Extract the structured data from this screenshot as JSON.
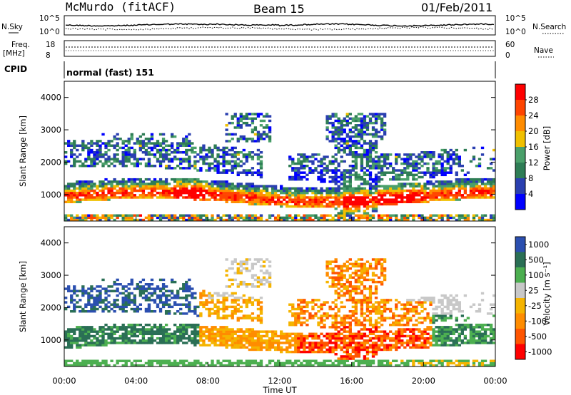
{
  "header": {
    "station": "McMurdo (fitACF)",
    "beam": "Beam 15",
    "date": "01/Feb/2011"
  },
  "noise_panel": {
    "left_label": "N.Sky",
    "right_label": "N.Search",
    "left_ticks": [
      "10^5",
      "10^0"
    ],
    "right_ticks": [
      "10^5",
      "10^0"
    ]
  },
  "freq_panel": {
    "left_label_line1": "Freq.",
    "left_label_line2": "[MHz]",
    "right_label": "Nave",
    "left_ticks": [
      "18",
      "8"
    ],
    "right_ticks": [
      "60",
      "0"
    ]
  },
  "cpid_panel": {
    "label": "CPID",
    "text": "normal (fast) 151"
  },
  "colors": {
    "power": [
      "#0000ff",
      "#2a3fb0",
      "#2e7d55",
      "#4aa06a",
      "#f0c000",
      "#ff8c00",
      "#ff4500",
      "#ff0000"
    ],
    "velocity": [
      "#2b4fb0",
      "#2a6f55",
      "#4caf50",
      "#c8c8c8",
      "#f5b400",
      "#ff8c00",
      "#ff5500",
      "#ff0000"
    ]
  },
  "chart_data": [
    {
      "type": "heatmap",
      "name": "power",
      "ylabel": "Slant Range [km]",
      "yticks": [
        1000,
        2000,
        3000,
        4000
      ],
      "ylim": [
        180,
        4500
      ],
      "xlim_hours": [
        0,
        24
      ],
      "colorbar_label": "Power [dB]",
      "colorbar_ticks": [
        "28",
        "24",
        "20",
        "16",
        "12",
        "8",
        "4"
      ],
      "scale": [
        0,
        32
      ]
    },
    {
      "type": "heatmap",
      "name": "velocity",
      "xlabel": "Time UT",
      "ylabel": "Slant Range [km]",
      "yticks": [
        1000,
        2000,
        3000,
        4000
      ],
      "ylim": [
        180,
        4500
      ],
      "xlim_hours": [
        0,
        24
      ],
      "xticks": [
        "00:00",
        "04:00",
        "08:00",
        "12:00",
        "16:00",
        "20:00",
        "00:00"
      ],
      "colorbar_label": "Velocity [m s⁻¹]",
      "colorbar_ticks": [
        "1000",
        "500",
        "100",
        "25",
        "-25",
        "-100",
        "-500",
        "-1000"
      ]
    }
  ]
}
